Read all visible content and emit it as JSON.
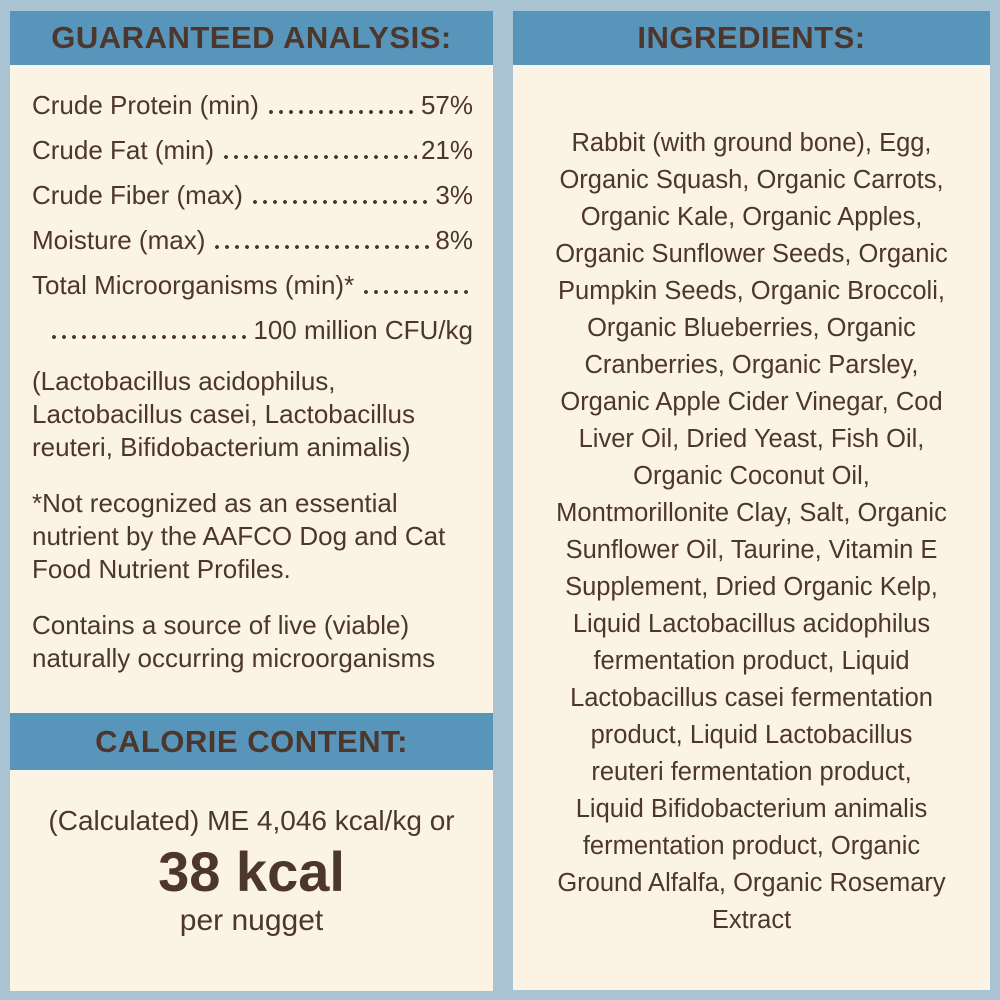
{
  "colors": {
    "page_background": "#a9c3d2",
    "header_band": "#5795bb",
    "panel_background": "#fbf4e4",
    "text": "#4d362c"
  },
  "guaranteed_analysis": {
    "title": "GUARANTEED ANALYSIS:",
    "rows": [
      {
        "label": "Crude Protein (min)",
        "value": "57%"
      },
      {
        "label": "Crude Fat (min)",
        "value": "21%"
      },
      {
        "label": "Crude Fiber (max)",
        "value": "3%"
      },
      {
        "label": "Moisture (max)",
        "value": "8%"
      }
    ],
    "microorganisms": {
      "label": "Total Microorganisms (min)*",
      "value": "100 million CFU/kg"
    },
    "species_note": "(Lactobacillus acidophilus,\nLactobacillus casei, Lactobacillus\nreuteri, Bifidobacterium animalis)",
    "aafco_note": "*Not recognized as an essential\nnutrient by the AAFCO Dog and Cat\nFood Nutrient Profiles.",
    "viable_note": "Contains a source of live (viable)\nnaturally occurring microorganisms"
  },
  "calorie_content": {
    "title": "CALORIE CONTENT:",
    "calculated_line": "(Calculated) ME 4,046 kcal/kg or",
    "value": "38 kcal",
    "per": "per nugget"
  },
  "ingredients": {
    "title": "INGREDIENTS:",
    "text": "Rabbit (with ground bone), Egg,\nOrganic Squash, Organic Carrots,\nOrganic Kale, Organic Apples,\nOrganic Sunflower Seeds, Organic\nPumpkin Seeds, Organic Broccoli,\nOrganic Blueberries, Organic\nCranberries, Organic Parsley,\nOrganic Apple Cider Vinegar, Cod\nLiver Oil, Dried Yeast, Fish Oil,\nOrganic Coconut Oil,\nMontmorillonite Clay, Salt, Organic\nSunflower Oil, Taurine, Vitamin E\nSupplement, Dried Organic Kelp,\nLiquid Lactobacillus acidophilus\nfermentation product, Liquid\nLactobacillus casei fermentation\nproduct, Liquid Lactobacillus\nreuteri fermentation product,\nLiquid Bifidobacterium animalis\nfermentation product, Organic\nGround Alfalfa, Organic Rosemary\nExtract"
  }
}
